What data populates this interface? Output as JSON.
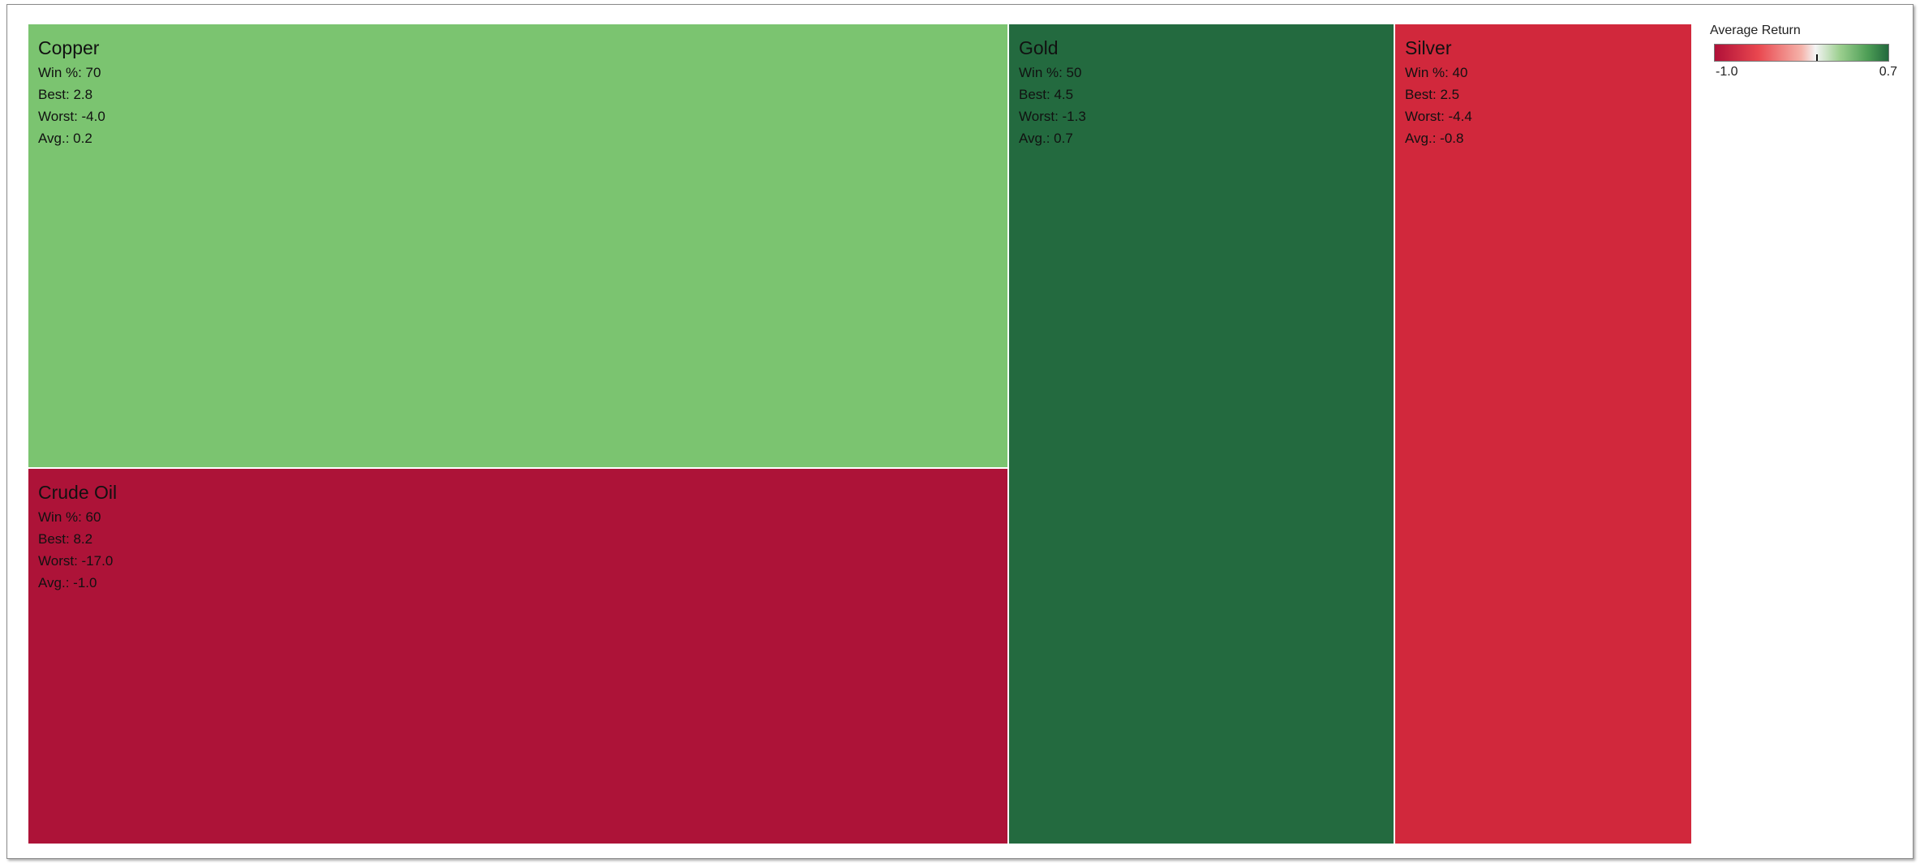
{
  "chart_data": {
    "type": "treemap",
    "color_measure": "Average Return",
    "color_range": [
      -1.0,
      0.7
    ],
    "tiles": [
      {
        "name": "Copper",
        "win_label": "Win %: 70",
        "best_label": "Best: 2.8",
        "worst_label": "Worst: -4.0",
        "avg_label": "Avg.: 0.2",
        "win_pct": 70,
        "best": 2.8,
        "worst": -4.0,
        "avg": 0.2,
        "color": "#7bc470"
      },
      {
        "name": "Crude Oil",
        "win_label": "Win %: 60",
        "best_label": "Best: 8.2",
        "worst_label": "Worst: -17.0",
        "avg_label": "Avg.: -1.0",
        "win_pct": 60,
        "best": 8.2,
        "worst": -17.0,
        "avg": -1.0,
        "color": "#ad1338"
      },
      {
        "name": "Gold",
        "win_label": "Win %: 50",
        "best_label": "Best: 4.5",
        "worst_label": "Worst: -1.3",
        "avg_label": "Avg.: 0.7",
        "win_pct": 50,
        "best": 4.5,
        "worst": -1.3,
        "avg": 0.7,
        "color": "#236a3f"
      },
      {
        "name": "Silver",
        "win_label": "Win %: 40",
        "best_label": "Best: 2.5",
        "worst_label": "Worst: -4.4",
        "avg_label": "Avg.: -0.8",
        "win_pct": 40,
        "best": 2.5,
        "worst": -4.4,
        "avg": -0.8,
        "color": "#d1283c"
      }
    ]
  },
  "legend": {
    "title": "Average Return",
    "min_label": "-1.0",
    "max_label": "0.7",
    "tick_value": 0.0
  }
}
